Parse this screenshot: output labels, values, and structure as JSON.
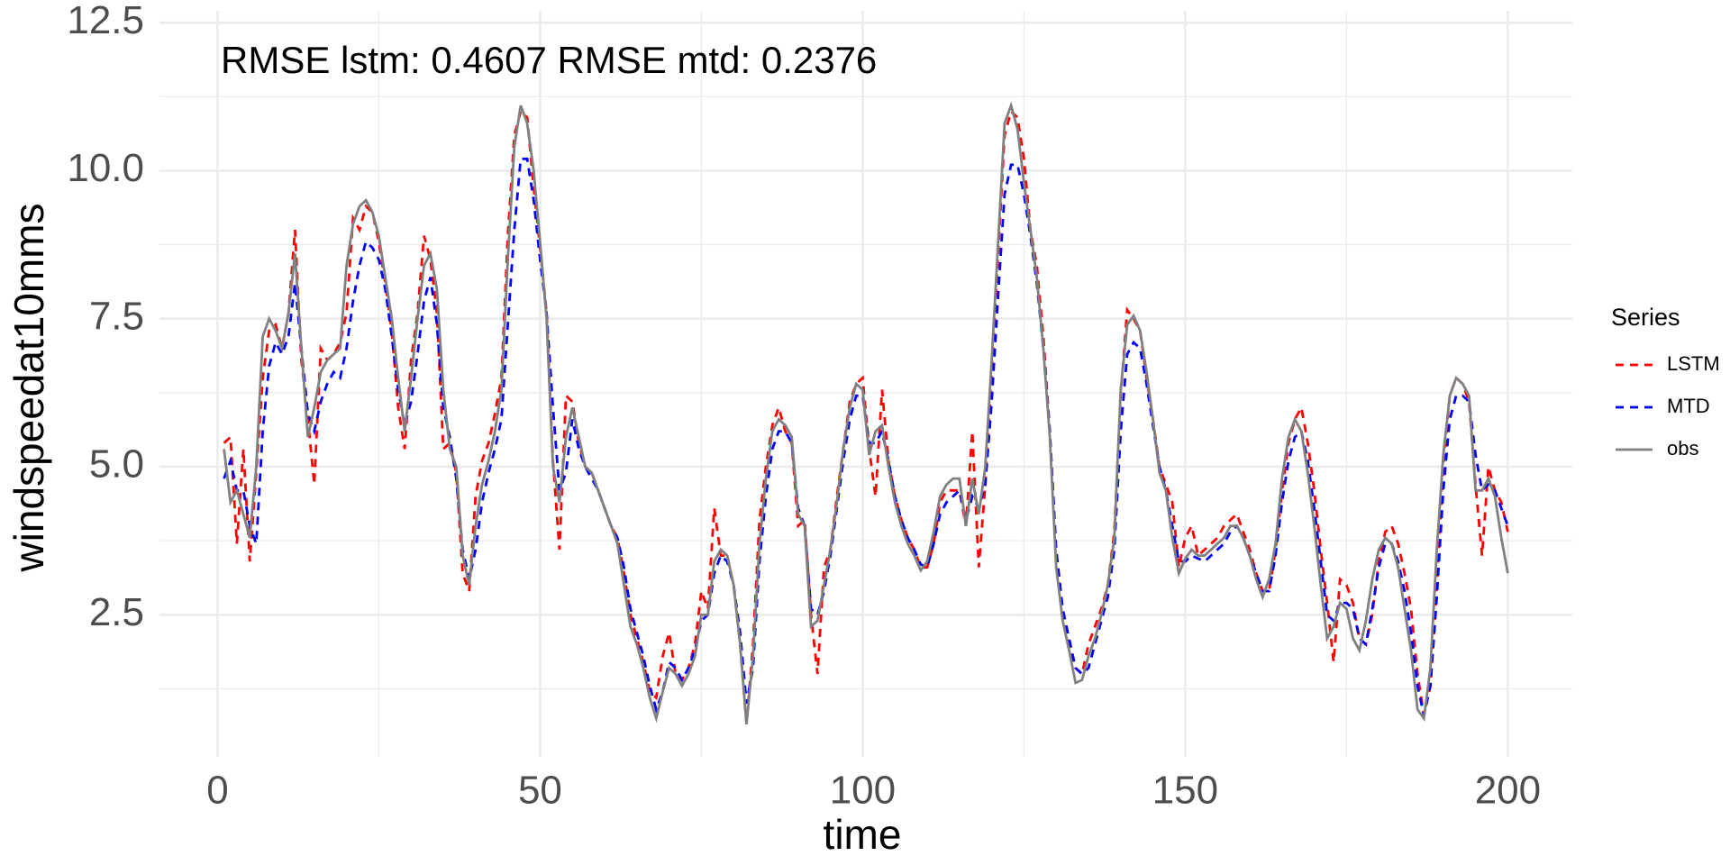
{
  "chart_data": {
    "type": "line",
    "annotation": "RMSE lstm: 0.4607 RMSE mtd: 0.2376",
    "x_label": "time",
    "y_label": "windspeedat10mms",
    "legend_title": "Series",
    "legend_position": "right",
    "grid": true,
    "xlim": [
      -9,
      210
    ],
    "xticks": [
      0,
      50,
      100,
      150,
      200
    ],
    "ylim": [
      0.1,
      12.7
    ],
    "yticks": [
      2.5,
      {
        "value": 5,
        "label": "5.0"
      },
      7.5,
      {
        "value": 10,
        "label": "10.0"
      },
      12.5
    ],
    "x_minor_grid": [
      25,
      75,
      125,
      175
    ],
    "y_minor_grid": [
      1.25,
      3.75,
      6.25,
      8.75,
      11.25
    ],
    "x": [
      1,
      2,
      3,
      4,
      5,
      6,
      7,
      8,
      9,
      10,
      11,
      12,
      13,
      14,
      15,
      16,
      17,
      18,
      19,
      20,
      21,
      22,
      23,
      24,
      25,
      26,
      27,
      28,
      29,
      30,
      31,
      32,
      33,
      34,
      35,
      36,
      37,
      38,
      39,
      40,
      41,
      42,
      43,
      44,
      45,
      46,
      47,
      48,
      49,
      50,
      51,
      52,
      53,
      54,
      55,
      56,
      57,
      58,
      59,
      60,
      61,
      62,
      63,
      64,
      65,
      66,
      67,
      68,
      69,
      70,
      71,
      72,
      73,
      74,
      75,
      76,
      77,
      78,
      79,
      80,
      81,
      82,
      83,
      84,
      85,
      86,
      87,
      88,
      89,
      90,
      91,
      92,
      93,
      94,
      95,
      96,
      97,
      98,
      99,
      100,
      101,
      102,
      103,
      104,
      105,
      106,
      107,
      108,
      109,
      110,
      111,
      112,
      113,
      114,
      115,
      116,
      117,
      118,
      119,
      120,
      121,
      122,
      123,
      124,
      125,
      126,
      127,
      128,
      129,
      130,
      131,
      132,
      133,
      134,
      135,
      136,
      137,
      138,
      139,
      140,
      141,
      142,
      143,
      144,
      145,
      146,
      147,
      148,
      149,
      150,
      151,
      152,
      153,
      154,
      155,
      156,
      157,
      158,
      159,
      160,
      161,
      162,
      163,
      164,
      165,
      166,
      167,
      168,
      169,
      170,
      171,
      172,
      173,
      174,
      175,
      176,
      177,
      178,
      179,
      180,
      181,
      182,
      183,
      184,
      185,
      186,
      187,
      188,
      189,
      190,
      191,
      192,
      193,
      194,
      195,
      196,
      197,
      198,
      199,
      200
    ],
    "series": [
      {
        "name": "LSTM",
        "color": "#ff0000",
        "linestyle": "dashed",
        "values": [
          5.4,
          5.5,
          3.7,
          5.3,
          3.4,
          4.9,
          6.5,
          7.3,
          7.4,
          7.0,
          7.6,
          9.0,
          6.8,
          5.8,
          4.7,
          7.0,
          6.8,
          6.9,
          7.1,
          7.6,
          9.2,
          9.0,
          9.4,
          9.3,
          8.8,
          8.1,
          7.3,
          6.0,
          5.3,
          6.8,
          7.6,
          8.9,
          8.5,
          7.6,
          5.3,
          5.4,
          4.9,
          3.2,
          2.9,
          4.5,
          5.1,
          5.4,
          5.9,
          6.5,
          8.9,
          10.6,
          11.0,
          10.9,
          9.7,
          8.7,
          7.6,
          5.1,
          3.6,
          6.2,
          6.1,
          5.4,
          5.0,
          4.9,
          4.6,
          4.3,
          4.0,
          3.8,
          3.2,
          2.5,
          2.1,
          1.7,
          1.2,
          1.1,
          1.8,
          2.2,
          1.5,
          1.4,
          1.6,
          2.0,
          2.9,
          2.6,
          4.3,
          3.5,
          3.5,
          3.0,
          2.0,
          0.65,
          2.0,
          4.1,
          5.0,
          5.7,
          6.0,
          5.6,
          5.4,
          4.0,
          4.1,
          2.5,
          1.5,
          3.3,
          3.6,
          4.5,
          5.3,
          6.1,
          6.4,
          6.5,
          5.3,
          4.5,
          6.3,
          5.1,
          4.5,
          4.1,
          3.8,
          3.6,
          3.3,
          3.3,
          3.7,
          4.4,
          4.6,
          4.6,
          4.6,
          4.0,
          5.6,
          3.3,
          4.7,
          6.6,
          8.6,
          10.6,
          11.0,
          10.9,
          10.2,
          9.0,
          8.4,
          7.2,
          5.6,
          3.5,
          2.5,
          2.0,
          1.6,
          1.5,
          2.0,
          2.3,
          2.6,
          3.0,
          3.9,
          6.2,
          7.65,
          7.5,
          7.3,
          6.5,
          5.8,
          5.0,
          4.7,
          4.4,
          3.3,
          3.8,
          4.0,
          3.5,
          3.6,
          3.7,
          3.8,
          4.0,
          4.1,
          4.2,
          3.9,
          3.6,
          3.2,
          2.9,
          2.9,
          3.6,
          4.6,
          5.4,
          5.8,
          6.0,
          5.4,
          4.6,
          3.6,
          2.7,
          1.7,
          3.1,
          3.0,
          2.7,
          2.1,
          2.0,
          2.5,
          3.4,
          3.9,
          4.0,
          3.7,
          3.2,
          2.6,
          1.5,
          0.8,
          1.3,
          3.0,
          5.0,
          6.2,
          6.5,
          6.4,
          6.1,
          4.7,
          3.5,
          5.0,
          4.6,
          4.4,
          3.9
        ]
      },
      {
        "name": "MTD",
        "color": "#0000ff",
        "linestyle": "dashed",
        "values": [
          4.8,
          5.1,
          4.6,
          4.6,
          4.0,
          3.7,
          5.6,
          6.7,
          7.1,
          6.9,
          7.2,
          8.1,
          7.0,
          5.9,
          5.6,
          6.1,
          6.4,
          6.6,
          6.5,
          7.0,
          7.8,
          8.4,
          8.8,
          8.7,
          8.5,
          8.0,
          7.2,
          6.3,
          5.7,
          6.1,
          6.9,
          7.8,
          8.2,
          7.4,
          6.0,
          5.5,
          4.8,
          3.6,
          3.1,
          3.6,
          4.4,
          4.9,
          5.3,
          5.8,
          7.4,
          9.0,
          10.2,
          10.2,
          9.5,
          8.5,
          7.6,
          6.0,
          4.6,
          4.9,
          5.8,
          5.3,
          5.0,
          4.8,
          4.6,
          4.3,
          4.0,
          3.8,
          3.3,
          2.6,
          2.2,
          1.8,
          1.3,
          0.9,
          1.2,
          1.7,
          1.6,
          1.4,
          1.6,
          1.9,
          2.4,
          2.5,
          3.2,
          3.5,
          3.4,
          3.0,
          2.2,
          1.0,
          1.6,
          3.4,
          4.5,
          5.3,
          5.6,
          5.6,
          5.4,
          4.3,
          4.0,
          2.6,
          2.5,
          2.9,
          3.5,
          4.3,
          5.1,
          5.8,
          6.2,
          6.2,
          5.4,
          5.4,
          5.6,
          5.1,
          4.5,
          4.1,
          3.8,
          3.6,
          3.35,
          3.3,
          3.7,
          4.2,
          4.4,
          4.5,
          4.6,
          4.1,
          4.5,
          4.3,
          4.7,
          6.1,
          7.9,
          9.6,
          10.1,
          10.1,
          9.6,
          8.9,
          8.1,
          7.0,
          5.6,
          3.6,
          2.6,
          2.1,
          1.6,
          1.5,
          1.6,
          2.0,
          2.4,
          2.8,
          3.6,
          5.6,
          6.9,
          7.1,
          7.0,
          6.4,
          5.7,
          5.0,
          4.6,
          4.0,
          3.4,
          3.4,
          3.5,
          3.45,
          3.4,
          3.5,
          3.6,
          3.7,
          3.9,
          4.0,
          3.8,
          3.5,
          3.2,
          2.9,
          2.9,
          3.5,
          4.4,
          5.1,
          5.5,
          5.6,
          5.1,
          4.3,
          3.4,
          2.5,
          2.4,
          2.7,
          2.7,
          2.6,
          2.1,
          2.0,
          2.6,
          3.3,
          3.7,
          3.7,
          3.4,
          2.9,
          2.2,
          1.3,
          0.8,
          1.3,
          2.8,
          4.6,
          5.8,
          6.2,
          6.2,
          6.1,
          5.2,
          4.6,
          4.7,
          4.6,
          4.3,
          4.0
        ]
      },
      {
        "name": "obs",
        "color": "#808080",
        "linestyle": "solid",
        "values": [
          5.3,
          4.4,
          4.6,
          4.2,
          3.8,
          5.0,
          7.2,
          7.5,
          7.3,
          7.0,
          7.6,
          8.6,
          7.0,
          5.5,
          6.0,
          6.6,
          6.8,
          6.9,
          7.0,
          8.4,
          9.1,
          9.4,
          9.5,
          9.3,
          8.9,
          8.2,
          7.5,
          6.5,
          5.6,
          6.5,
          7.5,
          8.4,
          8.6,
          8.0,
          6.3,
          5.3,
          5.0,
          3.5,
          3.0,
          4.0,
          4.7,
          5.1,
          5.6,
          6.3,
          8.5,
          10.4,
          11.1,
          10.8,
          10.0,
          8.8,
          7.5,
          5.0,
          4.4,
          5.5,
          6.0,
          5.5,
          5.0,
          4.9,
          4.6,
          4.3,
          4.0,
          3.7,
          3.0,
          2.3,
          2.0,
          1.6,
          1.1,
          0.75,
          1.2,
          1.6,
          1.5,
          1.3,
          1.5,
          1.8,
          2.5,
          2.5,
          3.4,
          3.6,
          3.5,
          3.0,
          2.0,
          0.65,
          1.8,
          3.7,
          4.8,
          5.6,
          5.8,
          5.7,
          5.5,
          4.2,
          4.0,
          2.3,
          2.4,
          3.0,
          3.6,
          4.4,
          5.3,
          6.0,
          6.4,
          6.3,
          5.2,
          5.6,
          5.7,
          5.0,
          4.4,
          4.0,
          3.7,
          3.5,
          3.25,
          3.4,
          3.9,
          4.5,
          4.7,
          4.8,
          4.8,
          4.0,
          4.8,
          4.2,
          5.0,
          6.8,
          8.8,
          10.8,
          11.1,
          10.7,
          9.8,
          9.0,
          8.2,
          7.0,
          5.5,
          3.3,
          2.4,
          1.9,
          1.35,
          1.4,
          1.8,
          2.1,
          2.5,
          3.0,
          3.8,
          6.3,
          7.4,
          7.55,
          7.3,
          6.6,
          5.8,
          4.9,
          4.6,
          3.8,
          3.2,
          3.45,
          3.6,
          3.5,
          3.5,
          3.6,
          3.7,
          3.8,
          4.0,
          4.0,
          3.8,
          3.5,
          3.1,
          2.8,
          3.1,
          3.7,
          4.8,
          5.5,
          5.8,
          5.6,
          4.9,
          4.0,
          3.0,
          2.1,
          2.3,
          2.7,
          2.6,
          2.1,
          1.9,
          2.4,
          3.1,
          3.6,
          3.8,
          3.7,
          3.3,
          2.6,
          1.9,
          0.9,
          0.75,
          1.6,
          3.6,
          5.2,
          6.2,
          6.5,
          6.4,
          6.2,
          4.6,
          4.6,
          4.8,
          4.5,
          3.8,
          3.2
        ]
      }
    ]
  }
}
